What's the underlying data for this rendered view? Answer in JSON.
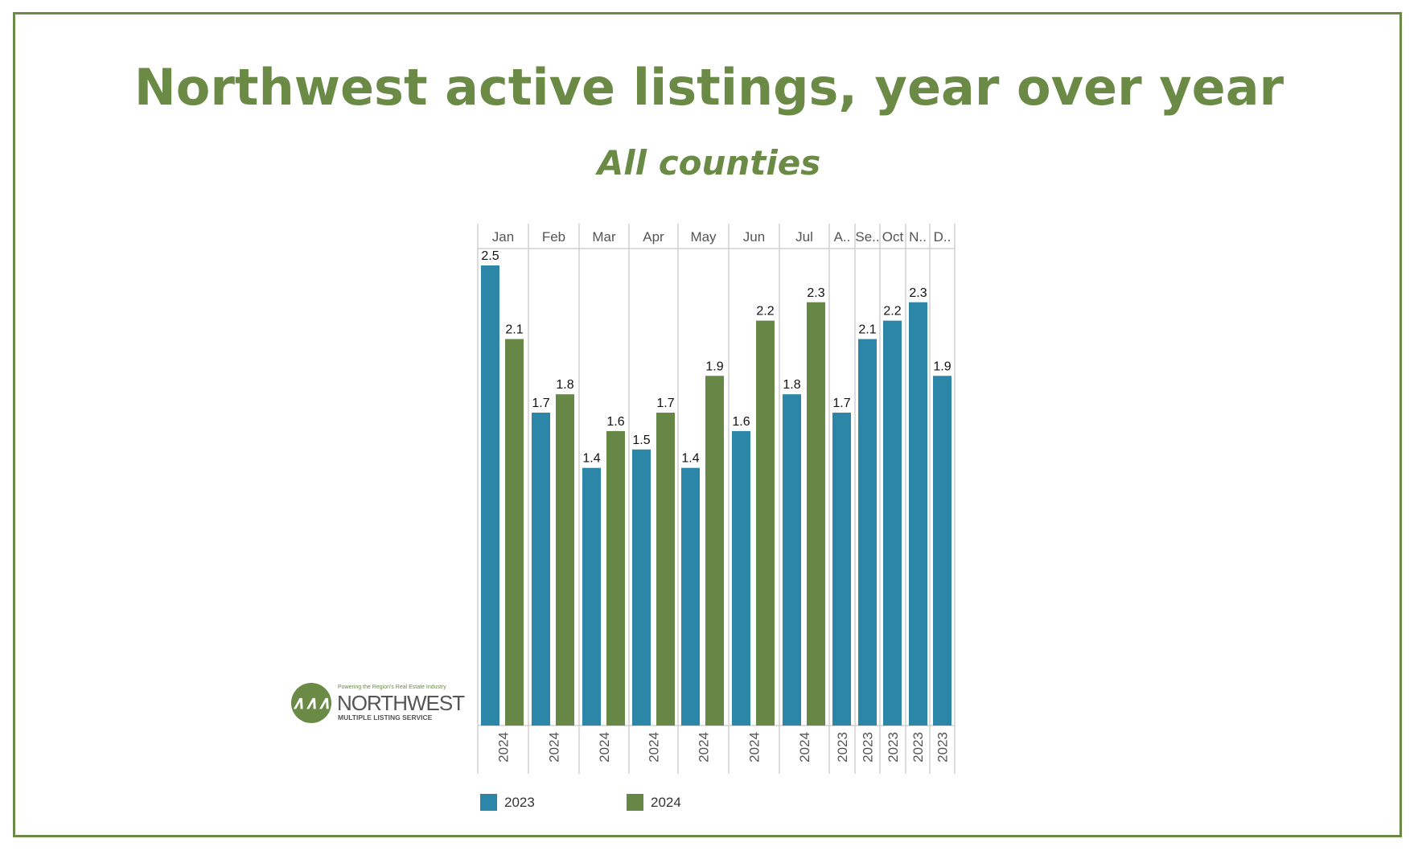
{
  "chart_data": {
    "type": "bar",
    "title": "Northwest active listings, year over year",
    "subtitle": "All counties",
    "categories": [
      "Jan",
      "Feb",
      "Mar",
      "Apr",
      "May",
      "Jun",
      "Jul",
      "A..",
      "Se..",
      "Oct",
      "N..",
      "D.."
    ],
    "year_labels": [
      "2024",
      "2024",
      "2024",
      "2024",
      "2024",
      "2024",
      "2024",
      "2023",
      "2023",
      "2023",
      "2023",
      "2023"
    ],
    "series": [
      {
        "name": "2023",
        "color": "#2c86a8",
        "values": [
          2.5,
          1.7,
          1.4,
          1.5,
          1.4,
          1.6,
          1.8,
          1.7,
          2.1,
          2.2,
          2.3,
          1.9
        ]
      },
      {
        "name": "2024",
        "color": "#678747",
        "values": [
          2.1,
          1.8,
          1.6,
          1.7,
          1.9,
          2.2,
          2.3,
          null,
          null,
          null,
          null,
          null
        ]
      }
    ],
    "xlabel": "",
    "ylabel": "",
    "ylim": [
      0,
      2.5
    ],
    "grid": false,
    "legend": "bottom-left"
  },
  "logo": {
    "tagline": "Powering the Region's Real Estate Industry",
    "name": "NORTHWEST",
    "sub": "MULTIPLE LISTING SERVICE"
  }
}
